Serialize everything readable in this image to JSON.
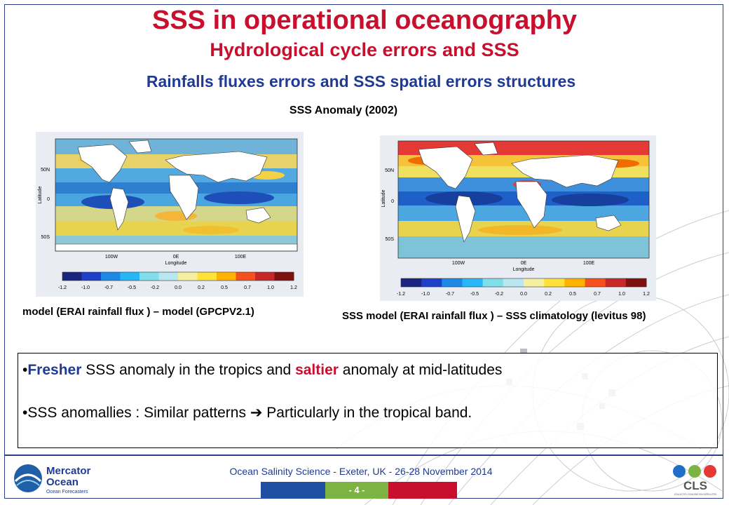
{
  "slide": {
    "title": "SSS in operational oceanography",
    "subtitle": "Hydrological cycle errors and SSS",
    "subtitle2": "Rainfalls fluxes errors and SSS spatial errors structures",
    "map_title": "SSS Anomaly (2002)"
  },
  "maps": {
    "left": {
      "caption": "model (ERAI rainfall flux ) – model (GPCPV2.1)",
      "ylabel": "Latitude",
      "xlabel": "Longitude",
      "lat_ticks": [
        "50N",
        "0",
        "50S"
      ],
      "lon_ticks": [
        "100W",
        "0E",
        "100E"
      ]
    },
    "right": {
      "caption": "SSS model (ERAI rainfall flux ) – SSS climatology (levitus 98)",
      "ylabel": "Latitude",
      "xlabel": "Longitude",
      "lat_ticks": [
        "50N",
        "0",
        "50S"
      ],
      "lon_ticks": [
        "100W",
        "0E",
        "100E"
      ]
    },
    "colorbar_ticks": [
      "-1.2",
      "-1.0",
      "-0.7",
      "-0.5",
      "-0.2",
      "0.0",
      "0.2",
      "0.5",
      "0.7",
      "1.0",
      "1.2"
    ],
    "colorbar_colors": [
      "#1a237e",
      "#1e40c8",
      "#1e88e5",
      "#29b6f6",
      "#80deea",
      "#b9e7f0",
      "#f5f0a0",
      "#ffe13a",
      "#ffb300",
      "#f4511e",
      "#c62828",
      "#7f1010"
    ]
  },
  "bullets": {
    "b1_pre": "•",
    "b1_fresher": "Fresher",
    "b1_mid": " SSS anomaly in the tropics and ",
    "b1_saltier": "saltier",
    "b1_post": " anomaly at mid-latitudes",
    "b2_pre": "•SSS anomallies : Similar patterns ",
    "b2_arrow": "➔",
    "b2_post": " Particularly in the tropical band."
  },
  "footer": {
    "conference": "Ocean Salinity Science - Exeter, UK - 26-28 November 2014",
    "page_number": "- 4 -",
    "mercator_name_1": "Mercator",
    "mercator_name_2": "Ocean",
    "mercator_tagline": "Ocean Forecasters",
    "cls_name": "CLS",
    "cls_tagline": "COLLECTE LOCALISATION SATELLITES"
  },
  "colors": {
    "title_red": "#c8102e",
    "title_blue": "#1f3a93",
    "page_green": "#7cb342",
    "bar_blue": "#1f4fa3",
    "bar_red": "#c8102e"
  }
}
